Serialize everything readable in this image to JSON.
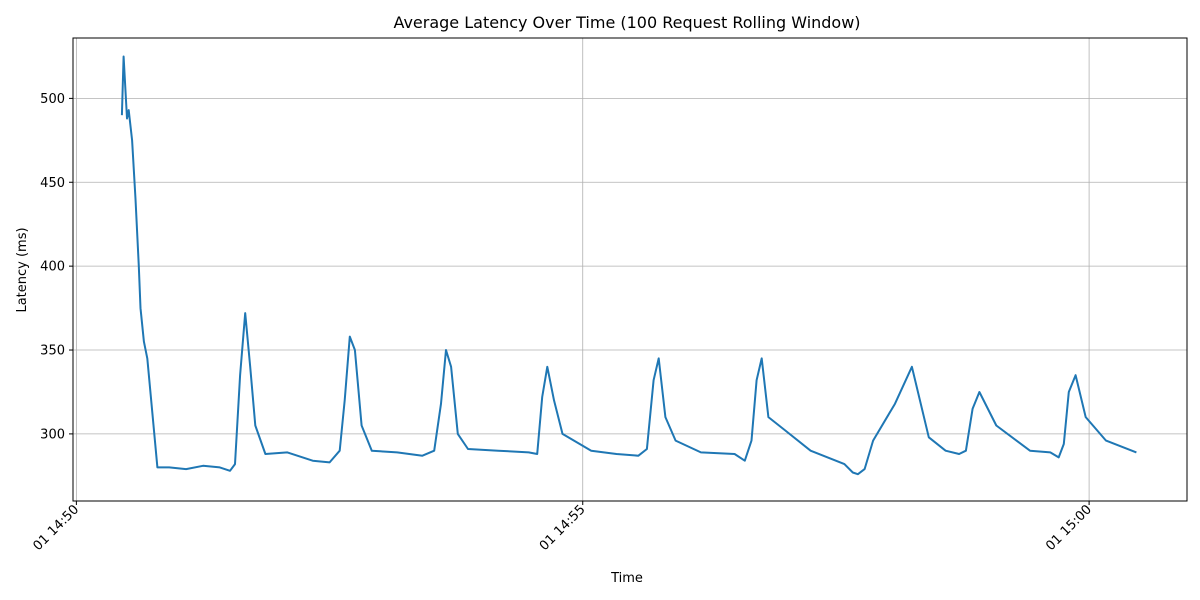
{
  "chart_data": {
    "type": "line",
    "title": "Average Latency Over Time (100 Request Rolling Window)",
    "xlabel": "Time",
    "ylabel": "Latency (ms)",
    "grid": true,
    "line_color": "#1f77b4",
    "xlim": [
      "2024-01-01 14:49:58",
      "2024-01-01 15:00:58"
    ],
    "ylim": [
      260,
      536
    ],
    "x_ticks": [
      {
        "value": "2024-01-01 14:50:00",
        "label": "01 14:50"
      },
      {
        "value": "2024-01-01 14:55:00",
        "label": "01 14:55"
      },
      {
        "value": "2024-01-01 15:00:00",
        "label": "01 15:00"
      }
    ],
    "y_ticks": [
      300,
      350,
      400,
      450,
      500
    ],
    "series": [
      {
        "x": [
          "2024-01-01 14:50:27",
          "2024-01-01 14:50:28",
          "2024-01-01 14:50:30",
          "2024-01-01 14:50:31",
          "2024-01-01 14:50:33",
          "2024-01-01 14:50:35",
          "2024-01-01 14:50:37",
          "2024-01-01 14:50:38",
          "2024-01-01 14:50:40",
          "2024-01-01 14:50:42",
          "2024-01-01 14:50:48",
          "2024-01-01 14:50:55",
          "2024-01-01 14:51:05",
          "2024-01-01 14:51:15",
          "2024-01-01 14:51:25",
          "2024-01-01 14:51:31",
          "2024-01-01 14:51:34",
          "2024-01-01 14:51:37",
          "2024-01-01 14:51:40",
          "2024-01-01 14:51:43",
          "2024-01-01 14:51:46",
          "2024-01-01 14:51:52",
          "2024-01-01 14:52:05",
          "2024-01-01 14:52:20",
          "2024-01-01 14:52:30",
          "2024-01-01 14:52:36",
          "2024-01-01 14:52:39",
          "2024-01-01 14:52:42",
          "2024-01-01 14:52:45",
          "2024-01-01 14:52:49",
          "2024-01-01 14:52:55",
          "2024-01-01 14:53:10",
          "2024-01-01 14:53:25",
          "2024-01-01 14:53:32",
          "2024-01-01 14:53:36",
          "2024-01-01 14:53:39",
          "2024-01-01 14:53:42",
          "2024-01-01 14:53:46",
          "2024-01-01 14:53:52",
          "2024-01-01 14:54:10",
          "2024-01-01 14:54:28",
          "2024-01-01 14:54:33",
          "2024-01-01 14:54:36",
          "2024-01-01 14:54:39",
          "2024-01-01 14:54:43",
          "2024-01-01 14:54:48",
          "2024-01-01 14:55:05",
          "2024-01-01 14:55:20",
          "2024-01-01 14:55:33",
          "2024-01-01 14:55:38",
          "2024-01-01 14:55:42",
          "2024-01-01 14:55:45",
          "2024-01-01 14:55:49",
          "2024-01-01 14:55:55",
          "2024-01-01 14:56:10",
          "2024-01-01 14:56:30",
          "2024-01-01 14:56:36",
          "2024-01-01 14:56:40",
          "2024-01-01 14:56:43",
          "2024-01-01 14:56:46",
          "2024-01-01 14:56:50",
          "2024-01-01 14:57:00",
          "2024-01-01 14:57:15",
          "2024-01-01 14:57:35",
          "2024-01-01 14:57:40",
          "2024-01-01 14:57:43",
          "2024-01-01 14:57:47",
          "2024-01-01 14:57:52",
          "2024-01-01 14:58:05",
          "2024-01-01 14:58:15",
          "2024-01-01 14:58:25",
          "2024-01-01 14:58:35",
          "2024-01-01 14:58:43",
          "2024-01-01 14:58:47",
          "2024-01-01 14:58:51",
          "2024-01-01 14:58:55",
          "2024-01-01 14:59:05",
          "2024-01-01 14:59:25",
          "2024-01-01 14:59:37",
          "2024-01-01 14:59:42",
          "2024-01-01 14:59:45",
          "2024-01-01 14:59:48",
          "2024-01-01 14:59:52",
          "2024-01-01 14:59:58",
          "2024-01-01 15:00:10",
          "2024-01-01 15:00:28"
        ],
        "y": [
          490,
          525,
          488,
          493,
          475,
          440,
          400,
          375,
          355,
          345,
          280,
          280,
          279,
          281,
          280,
          278,
          282,
          335,
          372,
          340,
          305,
          288,
          289,
          284,
          283,
          290,
          320,
          358,
          350,
          305,
          290,
          289,
          287,
          290,
          318,
          350,
          340,
          300,
          291,
          290,
          289,
          288,
          322,
          340,
          320,
          300,
          290,
          288,
          287,
          291,
          332,
          345,
          310,
          296,
          289,
          288,
          284,
          296,
          332,
          345,
          310,
          302,
          290,
          282,
          277,
          276,
          279,
          296,
          318,
          340,
          298,
          290,
          288,
          290,
          315,
          325,
          305,
          290,
          289,
          286,
          294,
          325,
          335,
          310,
          296,
          289
        ]
      }
    ]
  }
}
